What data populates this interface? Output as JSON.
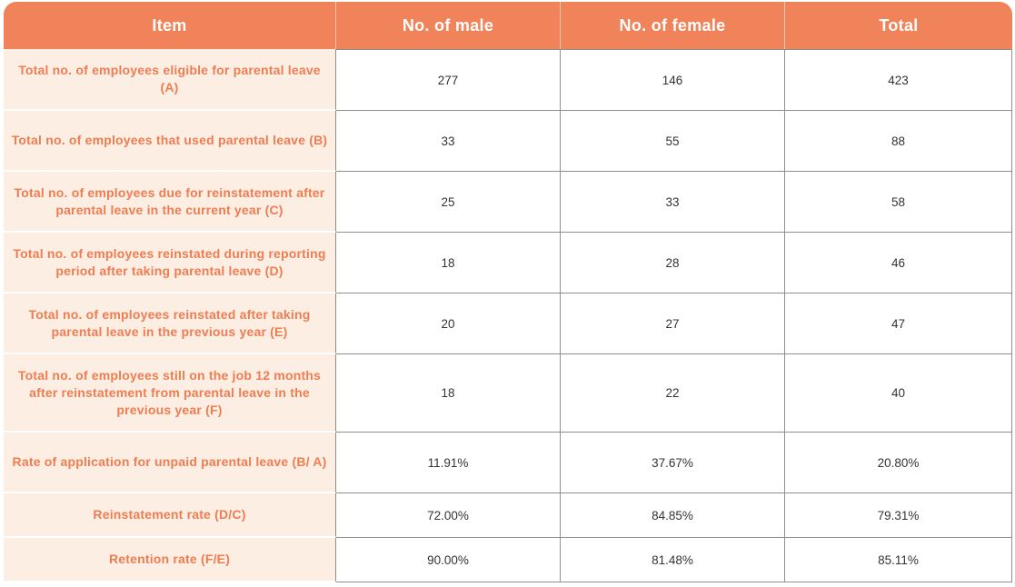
{
  "table": {
    "headers": [
      "Item",
      "No. of male",
      "No. of female",
      "Total"
    ],
    "rows": [
      {
        "item": "Total no. of employees eligible for parental leave (A)",
        "male": "277",
        "female": "146",
        "total": "423"
      },
      {
        "item": "Total no. of employees that used parental leave (B)",
        "male": "33",
        "female": "55",
        "total": "88"
      },
      {
        "item": "Total no. of employees due for reinstatement after parental leave in the current year (C)",
        "male": "25",
        "female": "33",
        "total": "58"
      },
      {
        "item": "Total no. of employees reinstated during reporting period after taking parental leave (D)",
        "male": "18",
        "female": "28",
        "total": "46"
      },
      {
        "item": "Total no. of employees reinstated after taking parental leave in the previous year (E)",
        "male": "20",
        "female": "27",
        "total": "47"
      },
      {
        "item": "Total no. of employees still on the job 12 months after reinstatement from parental leave in the previous year (F)",
        "male": "18",
        "female": "22",
        "total": "40"
      },
      {
        "item": "Rate of application for unpaid parental leave (B/ A)",
        "male": "11.91%",
        "female": "37.67%",
        "total": "20.80%"
      },
      {
        "item": "Reinstatement rate (D/C)",
        "male": "72.00%",
        "female": "84.85%",
        "total": "79.31%"
      },
      {
        "item": "Retention rate (F/E)",
        "male": "90.00%",
        "female": "81.48%",
        "total": "85.11%"
      }
    ]
  },
  "colors": {
    "header_bg": "#f08359",
    "item_bg": "#fdeee3",
    "item_text": "#ee7d52"
  }
}
